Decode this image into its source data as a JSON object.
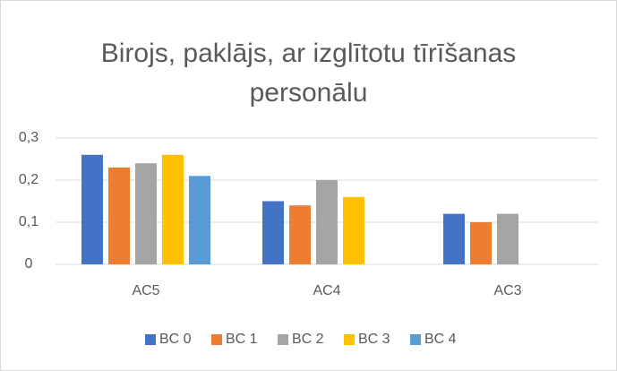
{
  "chart_data": {
    "type": "bar",
    "title": "Birojs, paklājs, ar izglītotu tīrīšanas personālu",
    "categories": [
      "AC5",
      "AC4",
      "AC3"
    ],
    "series": [
      {
        "name": "BC 0",
        "color": "#4472c4",
        "values": [
          0.26,
          0.15,
          0.12
        ]
      },
      {
        "name": "BC 1",
        "color": "#ed7d31",
        "values": [
          0.23,
          0.14,
          0.1
        ]
      },
      {
        "name": "BC 2",
        "color": "#a5a5a5",
        "values": [
          0.24,
          0.2,
          0.12
        ]
      },
      {
        "name": "BC 3",
        "color": "#ffc000",
        "values": [
          0.26,
          0.16,
          null
        ]
      },
      {
        "name": "BC 4",
        "color": "#5b9bd5",
        "values": [
          0.21,
          null,
          null
        ]
      }
    ],
    "ylim": [
      0,
      0.3
    ],
    "yticks": [
      0,
      {
        "value": 0.1,
        "label": "0,1"
      },
      {
        "value": 0.2,
        "label": "0,2"
      },
      {
        "value": 0.3,
        "label": "0,3"
      }
    ],
    "grid": true,
    "legend": "bottom"
  }
}
